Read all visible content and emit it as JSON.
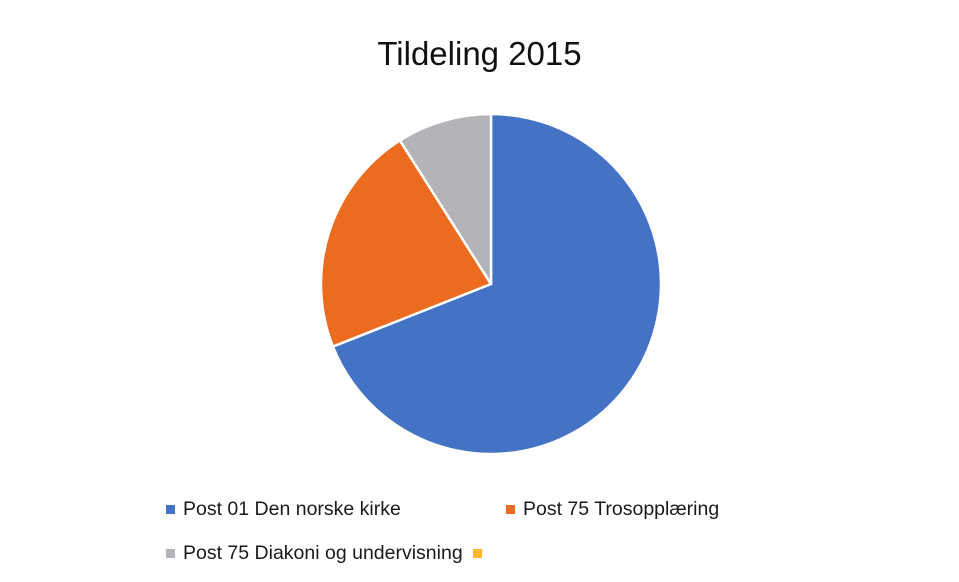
{
  "chart_data": {
    "type": "pie",
    "title": "Tildeling 2015",
    "slices": [
      {
        "label": "Post 01 Den norske kirke",
        "value": 69,
        "color": "#4472c4"
      },
      {
        "label": "Post 75 Trosopplæring",
        "value": 22,
        "color": "#ed6b1e"
      },
      {
        "label": "Post 75 Diakoni og undervisning",
        "value": 9,
        "color": "#b4b4b8"
      },
      {
        "label": "",
        "value": 0,
        "color": "#ffb52e"
      }
    ],
    "start_angle_deg": 0,
    "direction": "clockwise",
    "legend_position": "bottom",
    "slice_border_color": "#ffffff"
  }
}
